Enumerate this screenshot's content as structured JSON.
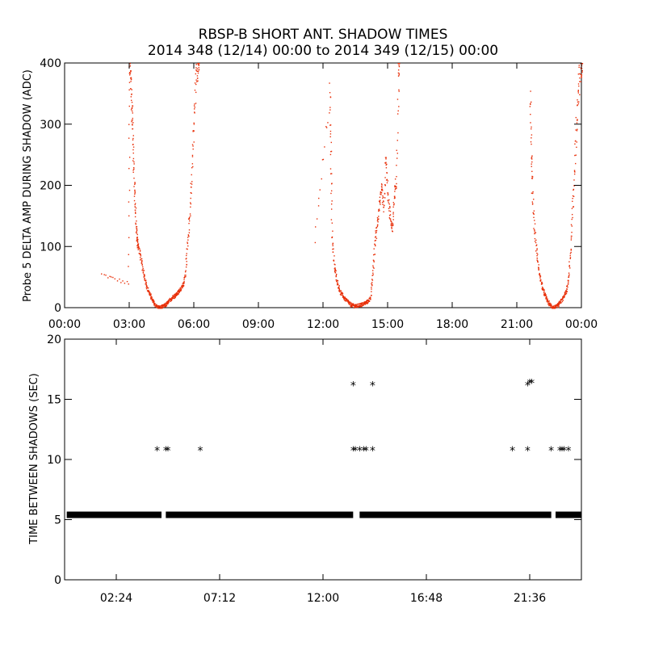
{
  "title_line1": "RBSP-B SHORT ANT. SHADOW TIMES",
  "title_line2": "2014 348 (12/14) 00:00 to 2014 349 (12/15) 00:00",
  "chart_data": [
    {
      "type": "scatter",
      "ylabel": "Probe 5 DELTA AMP DURING SHADOW (ADC)",
      "xlim": [
        0,
        24
      ],
      "ylim": [
        0,
        400
      ],
      "xticks": [
        0,
        3,
        6,
        9,
        12,
        15,
        18,
        21,
        24
      ],
      "xtick_labels": [
        "00:00",
        "03:00",
        "06:00",
        "09:00",
        "12:00",
        "15:00",
        "18:00",
        "21:00",
        "00:00"
      ],
      "yticks": [
        0,
        100,
        200,
        300,
        400
      ],
      "ytick_labels": [
        "0",
        "100",
        "200",
        "300",
        "400"
      ],
      "color": "#e8300a",
      "x_unit": "hours of day",
      "series": [
        {
          "x": [
            1.7,
            2.95,
            3.0,
            3.05,
            3.1,
            3.15,
            3.2,
            3.25,
            3.3,
            3.35,
            3.4,
            3.5,
            3.6,
            3.7,
            3.8,
            3.9,
            4.0,
            4.1,
            4.2,
            4.3,
            4.4,
            4.5,
            4.6,
            4.7,
            4.8,
            4.9,
            5.0,
            5.1,
            5.2,
            5.3,
            5.4,
            5.5,
            5.6,
            5.7,
            5.8,
            5.9,
            6.0,
            6.1,
            6.2
          ],
          "y": [
            55,
            40,
            400,
            370,
            330,
            280,
            220,
            170,
            130,
            110,
            100,
            85,
            65,
            50,
            35,
            25,
            18,
            10,
            5,
            2,
            1,
            2,
            4,
            6,
            10,
            14,
            18,
            20,
            24,
            28,
            32,
            40,
            60,
            110,
            160,
            230,
            320,
            390,
            400
          ]
        },
        {
          "x": [
            11.6,
            12.3,
            12.35,
            12.4,
            12.5,
            12.6,
            12.7,
            12.8,
            12.9,
            13.0,
            13.1,
            13.2,
            13.3,
            13.4,
            13.5,
            13.6,
            13.7,
            13.8,
            13.9,
            14.0,
            14.1,
            14.2,
            14.3,
            14.4,
            14.5,
            14.6,
            14.7,
            14.8,
            14.9,
            15.0,
            15.1,
            15.2,
            15.3,
            15.4,
            15.5
          ],
          "y": [
            110,
            350,
            250,
            120,
            70,
            50,
            35,
            25,
            20,
            15,
            12,
            8,
            5,
            4,
            3,
            4,
            5,
            6,
            8,
            10,
            12,
            20,
            60,
            110,
            140,
            170,
            200,
            160,
            250,
            180,
            150,
            130,
            190,
            210,
            400
          ]
        },
        {
          "x": [
            21.6,
            21.65,
            21.7,
            21.8,
            21.9,
            22.0,
            22.1,
            22.2,
            22.3,
            22.4,
            22.5,
            22.6,
            22.7,
            22.8,
            22.9,
            23.0,
            23.1,
            23.2,
            23.3,
            23.4,
            23.5,
            23.6,
            23.7,
            23.8,
            23.9,
            24.0
          ],
          "y": [
            360,
            250,
            190,
            130,
            90,
            60,
            45,
            30,
            20,
            12,
            6,
            2,
            1,
            2,
            5,
            10,
            15,
            22,
            30,
            55,
            110,
            180,
            260,
            330,
            380,
            400
          ]
        }
      ]
    },
    {
      "type": "scatter",
      "ylabel": "TIME BETWEEN SHADOWS (SEC)",
      "xlim": [
        0,
        24
      ],
      "ylim": [
        0,
        20
      ],
      "xticks": [
        2.4,
        7.2,
        12.0,
        16.8,
        21.6
      ],
      "xtick_labels": [
        "02:24",
        "07:12",
        "12:00",
        "16:48",
        "21:36"
      ],
      "yticks": [
        0,
        5,
        10,
        15,
        20
      ],
      "ytick_labels": [
        "0",
        "5",
        "10",
        "15",
        "20"
      ],
      "color": "#000000",
      "baseline": {
        "y": 5.4,
        "segments": [
          [
            0.1,
            4.5
          ],
          [
            4.7,
            13.4
          ],
          [
            13.7,
            22.6
          ],
          [
            22.8,
            24.0
          ]
        ]
      },
      "points": {
        "x": [
          4.3,
          4.7,
          4.8,
          6.3,
          13.4,
          13.5,
          13.7,
          13.9,
          14.0,
          14.3,
          13.4,
          14.3,
          20.8,
          21.5,
          21.6,
          21.7,
          21.5,
          22.6,
          23.0,
          23.1,
          23.2,
          23.4
        ],
        "y": [
          10.8,
          10.8,
          10.8,
          10.8,
          10.8,
          10.8,
          10.8,
          10.8,
          10.8,
          10.8,
          16.2,
          16.2,
          10.8,
          16.2,
          16.4,
          16.4,
          10.8,
          10.8,
          10.8,
          10.8,
          10.8,
          10.8
        ]
      }
    }
  ]
}
